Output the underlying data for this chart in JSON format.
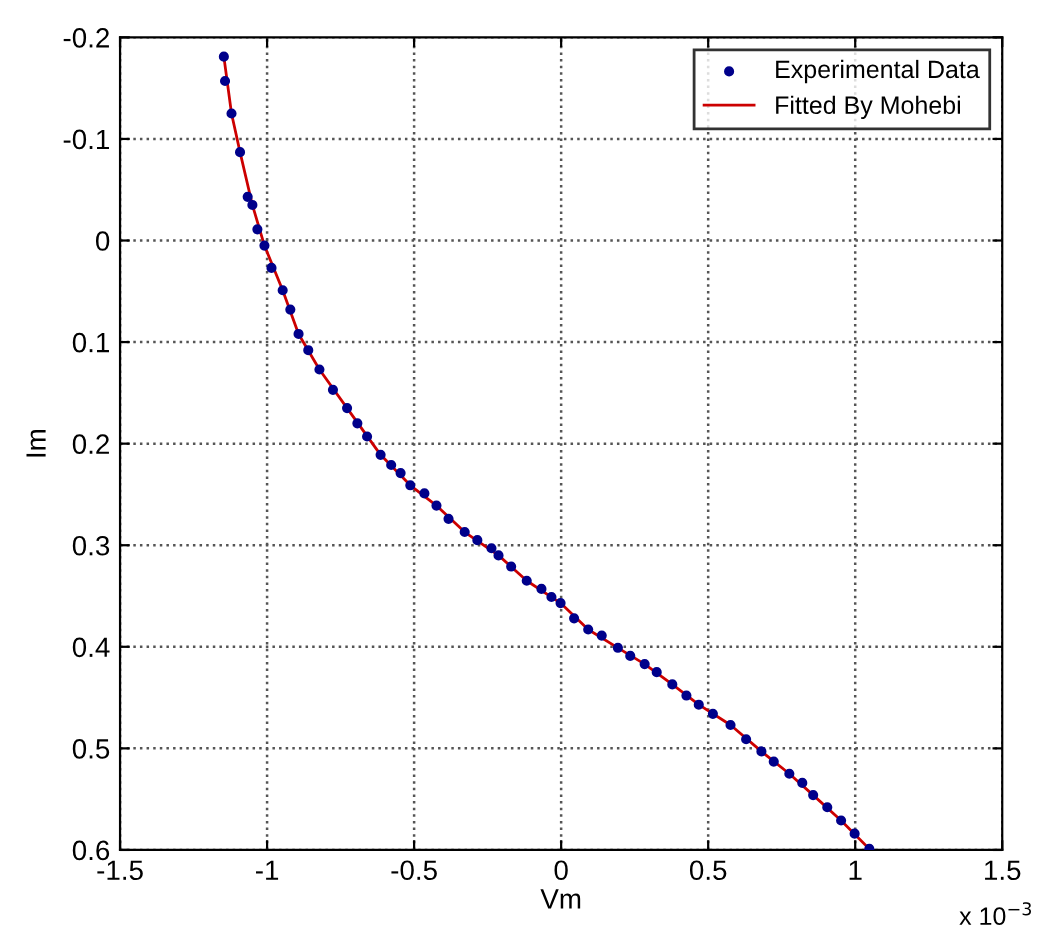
{
  "chart_data": {
    "type": "scatter",
    "xlabel": "Vm",
    "ylabel": "Im",
    "annotations": [
      "x 10$^{−3}$"
    ],
    "xlim": [
      -1.5,
      1.5
    ],
    "xticks": [
      -1.5,
      -1,
      -0.5,
      0,
      0.5,
      1,
      1.5
    ],
    "ylim": [
      0.6,
      -0.2
    ],
    "yticks": [
      -0.2,
      -0.1,
      0,
      0.1,
      0.2,
      0.3,
      0.4,
      0.5,
      0.6
    ],
    "grid": true,
    "legend": "top right",
    "series": [
      {
        "name": "Experimental Data",
        "marker": "circle",
        "color": "#00008b",
        "x": [
          -1.147,
          -1.143,
          -1.121,
          -1.092,
          -1.066,
          -1.05,
          -1.033,
          -1.009,
          -0.985,
          -0.947,
          -0.921,
          -0.893,
          -0.86,
          -0.822,
          -0.776,
          -0.728,
          -0.693,
          -0.66,
          -0.614,
          -0.578,
          -0.546,
          -0.513,
          -0.465,
          -0.424,
          -0.383,
          -0.328,
          -0.285,
          -0.237,
          -0.213,
          -0.17,
          -0.117,
          -0.067,
          -0.033,
          -0.002,
          0.044,
          0.092,
          0.138,
          0.193,
          0.235,
          0.284,
          0.325,
          0.378,
          0.426,
          0.468,
          0.516,
          0.576,
          0.629,
          0.681,
          0.723,
          0.776,
          0.82,
          0.857,
          0.905,
          0.952,
          0.998,
          1.048
        ],
        "values": [
          -0.181,
          -0.157,
          -0.125,
          -0.087,
          -0.043,
          -0.035,
          -0.011,
          0.005,
          0.027,
          0.049,
          0.068,
          0.092,
          0.108,
          0.127,
          0.147,
          0.165,
          0.18,
          0.193,
          0.211,
          0.221,
          0.229,
          0.241,
          0.249,
          0.261,
          0.274,
          0.287,
          0.295,
          0.303,
          0.31,
          0.321,
          0.335,
          0.343,
          0.351,
          0.357,
          0.372,
          0.383,
          0.389,
          0.401,
          0.409,
          0.417,
          0.425,
          0.437,
          0.448,
          0.457,
          0.466,
          0.477,
          0.491,
          0.503,
          0.513,
          0.525,
          0.534,
          0.546,
          0.558,
          0.571,
          0.584,
          0.599
        ]
      },
      {
        "name": "Fitted By Mohebi",
        "type": "line",
        "marker": "none",
        "line_style": "solid",
        "color": "#cc0000",
        "x": [
          -1.147,
          -1.121,
          -1.092,
          -1.05,
          -1.009,
          -0.947,
          -0.893,
          -0.822,
          -0.728,
          -0.614,
          -0.513,
          -0.424,
          -0.328,
          -0.213,
          -0.117,
          -0.002,
          0.092,
          0.193,
          0.284,
          0.378,
          0.468,
          0.576,
          0.681,
          0.776,
          0.857,
          0.952,
          1.048
        ],
        "values": [
          -0.181,
          -0.125,
          -0.087,
          -0.035,
          0.005,
          0.049,
          0.092,
          0.127,
          0.165,
          0.211,
          0.241,
          0.261,
          0.287,
          0.31,
          0.335,
          0.357,
          0.383,
          0.401,
          0.417,
          0.437,
          0.457,
          0.477,
          0.503,
          0.525,
          0.546,
          0.571,
          0.599
        ]
      }
    ]
  }
}
